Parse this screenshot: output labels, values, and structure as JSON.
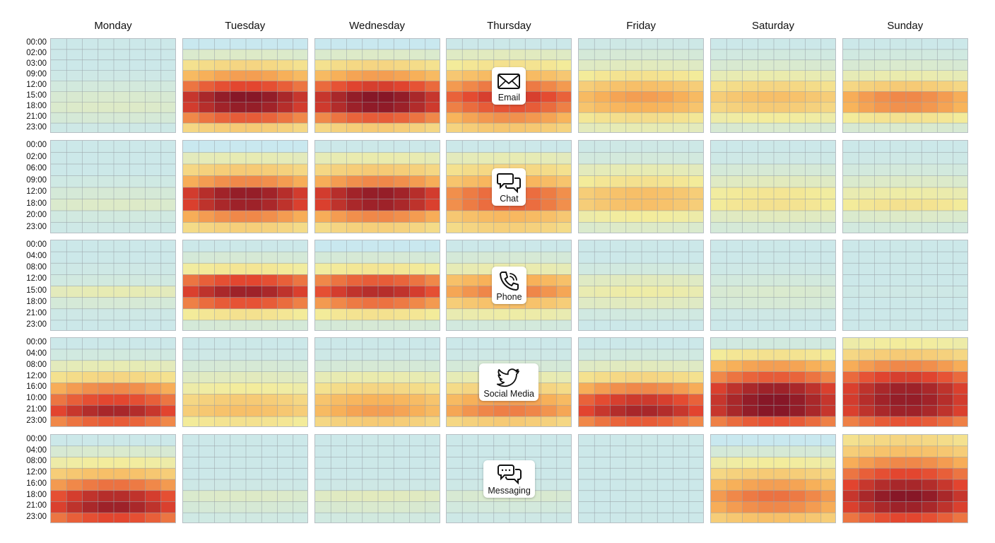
{
  "chart_data": {
    "type": "heatmap",
    "title": "",
    "days": [
      "Monday",
      "Tuesday",
      "Wednesday",
      "Thursday",
      "Friday",
      "Saturday",
      "Sunday"
    ],
    "color_scale": [
      "#c9e8ef",
      "#f3ec9c",
      "#f8b35a",
      "#e3452f",
      "#6e0a25"
    ],
    "value_range": [
      0,
      1
    ],
    "channels": [
      {
        "name": "Email",
        "icon": "envelope-icon",
        "y_ticks": [
          "00:00",
          "02:00",
          "03:00",
          "09:00",
          "12:00",
          "15:00",
          "18:00",
          "21:00",
          "23:00"
        ],
        "intensity": {
          "Monday": [
            0.02,
            0.02,
            0.02,
            0.03,
            0.06,
            0.1,
            0.12,
            0.08,
            0.03
          ],
          "Tuesday": [
            0.0,
            0.12,
            0.35,
            0.55,
            0.75,
            0.95,
            0.92,
            0.7,
            0.4
          ],
          "Wednesday": [
            0.0,
            0.12,
            0.35,
            0.55,
            0.78,
            0.95,
            0.93,
            0.7,
            0.4
          ],
          "Thursday": [
            0.02,
            0.15,
            0.3,
            0.48,
            0.65,
            0.8,
            0.72,
            0.58,
            0.42
          ],
          "Friday": [
            0.03,
            0.08,
            0.15,
            0.3,
            0.45,
            0.55,
            0.5,
            0.32,
            0.18
          ],
          "Saturday": [
            0.02,
            0.05,
            0.1,
            0.2,
            0.35,
            0.45,
            0.4,
            0.25,
            0.1
          ],
          "Sunday": [
            0.02,
            0.05,
            0.1,
            0.2,
            0.4,
            0.6,
            0.58,
            0.3,
            0.1
          ]
        }
      },
      {
        "name": "Chat",
        "icon": "chat-bubbles-icon",
        "y_ticks": [
          "00:00",
          "02:00",
          "06:00",
          "09:00",
          "12:00",
          "18:00",
          "20:00",
          "23:00"
        ],
        "intensity": {
          "Monday": [
            0.02,
            0.02,
            0.02,
            0.04,
            0.08,
            0.12,
            0.05,
            0.03
          ],
          "Tuesday": [
            0.0,
            0.18,
            0.4,
            0.6,
            0.92,
            0.9,
            0.6,
            0.38
          ],
          "Wednesday": [
            0.02,
            0.2,
            0.4,
            0.6,
            0.92,
            0.9,
            0.6,
            0.38
          ],
          "Thursday": [
            0.02,
            0.18,
            0.35,
            0.5,
            0.68,
            0.68,
            0.48,
            0.38
          ],
          "Friday": [
            0.03,
            0.06,
            0.18,
            0.3,
            0.45,
            0.45,
            0.25,
            0.12
          ],
          "Saturday": [
            0.02,
            0.03,
            0.08,
            0.15,
            0.28,
            0.3,
            0.15,
            0.08
          ],
          "Sunday": [
            0.02,
            0.03,
            0.06,
            0.12,
            0.22,
            0.3,
            0.12,
            0.06
          ]
        }
      },
      {
        "name": "Phone",
        "icon": "phone-icon",
        "y_ticks": [
          "00:00",
          "04:00",
          "08:00",
          "12:00",
          "15:00",
          "18:00",
          "21:00",
          "23:00"
        ],
        "intensity": {
          "Monday": [
            0.02,
            0.02,
            0.03,
            0.05,
            0.18,
            0.08,
            0.03,
            0.02
          ],
          "Tuesday": [
            0.02,
            0.08,
            0.28,
            0.75,
            0.9,
            0.72,
            0.3,
            0.08
          ],
          "Wednesday": [
            0.0,
            0.08,
            0.28,
            0.7,
            0.85,
            0.65,
            0.3,
            0.08
          ],
          "Thursday": [
            0.02,
            0.08,
            0.2,
            0.52,
            0.62,
            0.45,
            0.22,
            0.06
          ],
          "Friday": [
            0.02,
            0.02,
            0.05,
            0.15,
            0.22,
            0.15,
            0.05,
            0.02
          ],
          "Saturday": [
            0.02,
            0.02,
            0.03,
            0.06,
            0.1,
            0.08,
            0.03,
            0.02
          ],
          "Sunday": [
            0.02,
            0.02,
            0.02,
            0.02,
            0.03,
            0.02,
            0.02,
            0.02
          ]
        }
      },
      {
        "name": "Social Media",
        "icon": "twitter-bird-icon",
        "y_ticks": [
          "00:00",
          "04:00",
          "08:00",
          "12:00",
          "16:00",
          "10:00",
          "21:00",
          "23:00"
        ],
        "intensity": {
          "Monday": [
            0.02,
            0.05,
            0.18,
            0.35,
            0.6,
            0.75,
            0.88,
            0.7
          ],
          "Tuesday": [
            0.02,
            0.03,
            0.08,
            0.15,
            0.25,
            0.4,
            0.45,
            0.3
          ],
          "Wednesday": [
            0.02,
            0.03,
            0.08,
            0.2,
            0.35,
            0.5,
            0.55,
            0.4
          ],
          "Thursday": [
            0.02,
            0.03,
            0.08,
            0.2,
            0.38,
            0.55,
            0.62,
            0.4
          ],
          "Friday": [
            0.02,
            0.05,
            0.15,
            0.35,
            0.6,
            0.8,
            0.88,
            0.7
          ],
          "Saturday": [
            0.05,
            0.3,
            0.55,
            0.7,
            0.9,
            0.95,
            0.95,
            0.72
          ],
          "Sunday": [
            0.25,
            0.4,
            0.6,
            0.78,
            0.9,
            0.92,
            0.9,
            0.72
          ]
        }
      },
      {
        "name": "Messaging",
        "icon": "message-bubbles-icon",
        "y_ticks": [
          "00:00",
          "04:00",
          "08:00",
          "12:00",
          "16:00",
          "18:00",
          "21:00",
          "23:00"
        ],
        "intensity": {
          "Monday": [
            0.02,
            0.1,
            0.25,
            0.45,
            0.65,
            0.85,
            0.9,
            0.75
          ],
          "Tuesday": [
            0.02,
            0.02,
            0.02,
            0.02,
            0.03,
            0.12,
            0.08,
            0.04
          ],
          "Wednesday": [
            0.02,
            0.02,
            0.02,
            0.02,
            0.03,
            0.15,
            0.1,
            0.05
          ],
          "Thursday": [
            0.02,
            0.02,
            0.02,
            0.02,
            0.03,
            0.1,
            0.06,
            0.03
          ],
          "Friday": [
            0.02,
            0.02,
            0.02,
            0.02,
            0.02,
            0.02,
            0.02,
            0.02
          ],
          "Saturday": [
            0.0,
            0.08,
            0.25,
            0.4,
            0.55,
            0.65,
            0.6,
            0.45
          ],
          "Sunday": [
            0.35,
            0.45,
            0.6,
            0.75,
            0.88,
            0.95,
            0.9,
            0.75
          ]
        }
      }
    ]
  }
}
